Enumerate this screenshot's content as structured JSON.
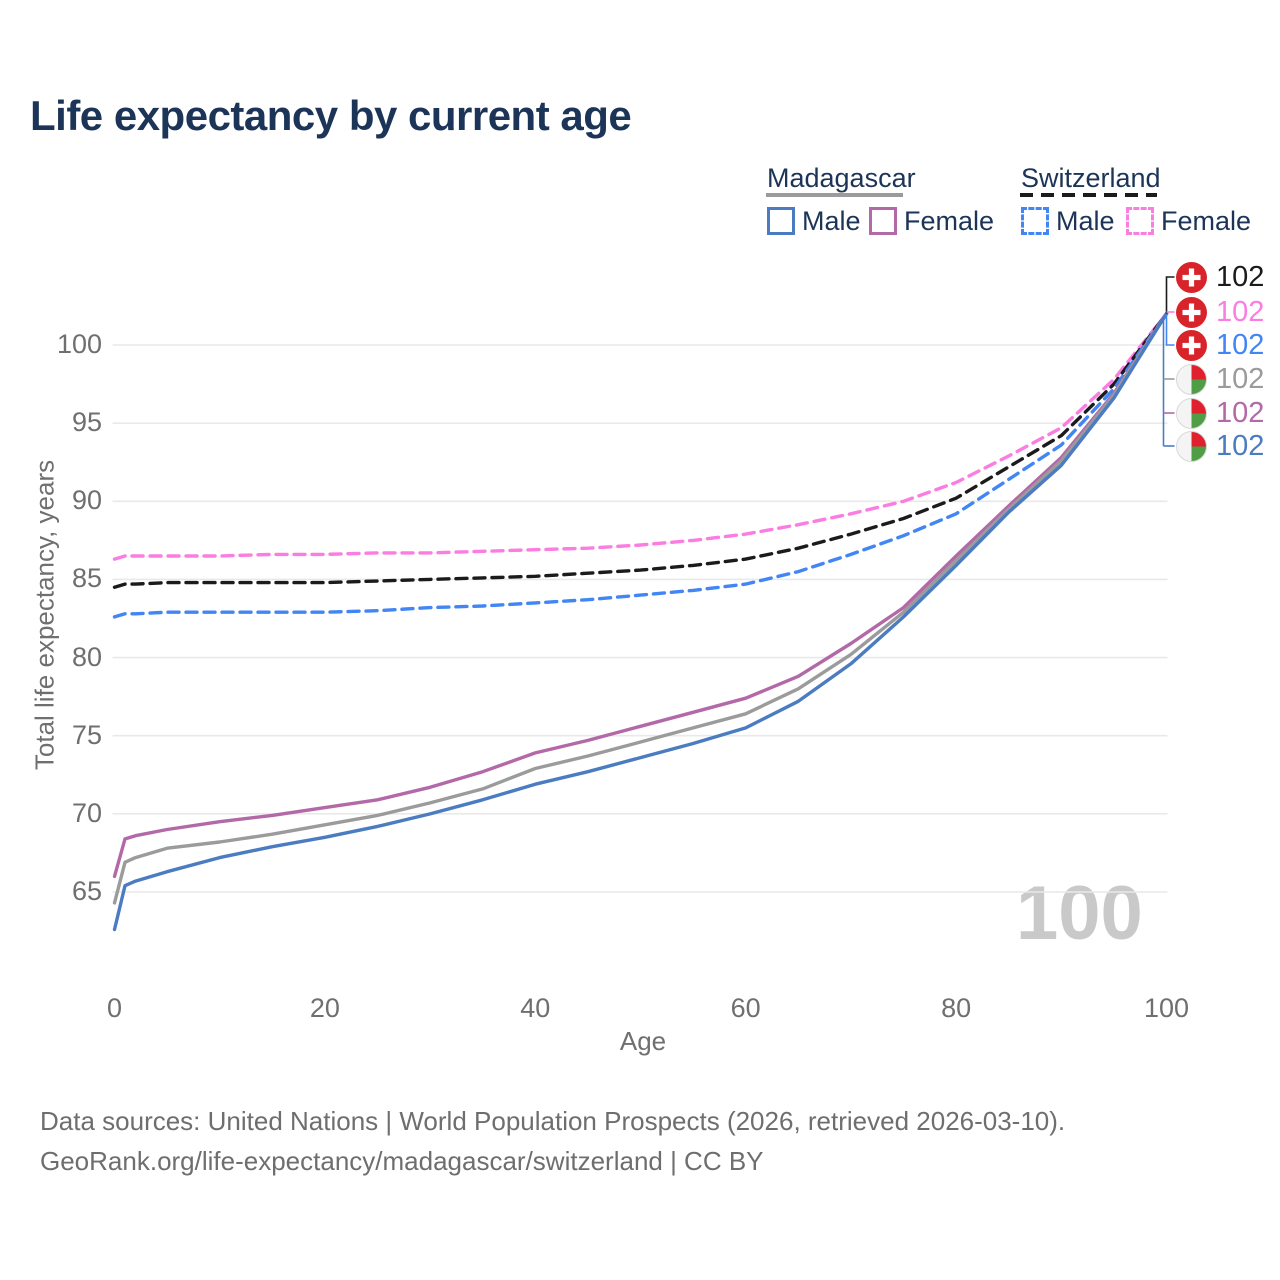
{
  "title": "Life expectancy by current age",
  "legend": {
    "groups": [
      {
        "country": "Madagascar",
        "line_style": "solid",
        "line_sample_color": "#9b9b9b",
        "items": [
          {
            "label": "Male",
            "color": "#4b7cc1",
            "dashed": false
          },
          {
            "label": "Female",
            "color": "#b369a8",
            "dashed": false
          }
        ]
      },
      {
        "country": "Switzerland",
        "line_style": "dashed",
        "line_sample_color": "#1b1b1b",
        "items": [
          {
            "label": "Male",
            "color": "#4186f4",
            "dashed": true
          },
          {
            "label": "Female",
            "color": "#fb7de1",
            "dashed": true
          }
        ]
      }
    ]
  },
  "chart_data": {
    "type": "line",
    "title": "Life expectancy by current age",
    "xlabel": "Age",
    "ylabel": "Total life expectancy, years",
    "xlim": [
      0,
      100
    ],
    "ylim": [
      60.5,
      104.5
    ],
    "x_ticks": [
      0,
      20,
      40,
      60,
      80,
      100
    ],
    "y_ticks": [
      65,
      70,
      75,
      80,
      85,
      90,
      95,
      100
    ],
    "grid": "horizontal",
    "legend_position": "top-right",
    "x": [
      0,
      1,
      2,
      5,
      10,
      15,
      20,
      25,
      30,
      35,
      40,
      45,
      50,
      55,
      60,
      65,
      70,
      75,
      80,
      85,
      90,
      95,
      100
    ],
    "series": [
      {
        "name": "Switzerland Female",
        "country": "Switzerland",
        "sex": "Female",
        "color": "#fb7de1",
        "dashed": true,
        "values": [
          86.3,
          86.5,
          86.5,
          86.5,
          86.5,
          86.6,
          86.6,
          86.7,
          86.7,
          86.8,
          86.9,
          87.0,
          87.2,
          87.5,
          87.9,
          88.5,
          89.2,
          90.0,
          91.2,
          92.9,
          94.7,
          97.8,
          102
        ]
      },
      {
        "name": "Switzerland Total",
        "country": "Switzerland",
        "sex": "Both",
        "color": "#1b1b1b",
        "dashed": true,
        "values": [
          84.5,
          84.7,
          84.7,
          84.8,
          84.8,
          84.8,
          84.8,
          84.9,
          85.0,
          85.1,
          85.2,
          85.4,
          85.6,
          85.9,
          86.3,
          87.0,
          87.9,
          88.9,
          90.2,
          92.2,
          94.2,
          97.5,
          102
        ]
      },
      {
        "name": "Switzerland Male",
        "country": "Switzerland",
        "sex": "Male",
        "color": "#4186f4",
        "dashed": true,
        "values": [
          82.6,
          82.8,
          82.8,
          82.9,
          82.9,
          82.9,
          82.9,
          83.0,
          83.2,
          83.3,
          83.5,
          83.7,
          84.0,
          84.3,
          84.7,
          85.5,
          86.6,
          87.8,
          89.2,
          91.4,
          93.6,
          97.2,
          102
        ]
      },
      {
        "name": "Madagascar Female",
        "country": "Madagascar",
        "sex": "Female",
        "color": "#b369a8",
        "dashed": false,
        "values": [
          66.0,
          68.4,
          68.6,
          69.0,
          69.5,
          69.9,
          70.4,
          70.9,
          71.7,
          72.7,
          73.9,
          74.7,
          75.6,
          76.5,
          77.4,
          78.8,
          80.9,
          83.2,
          86.5,
          89.7,
          92.8,
          96.9,
          102
        ]
      },
      {
        "name": "Madagascar Total",
        "country": "Madagascar",
        "sex": "Both",
        "color": "#9b9b9b",
        "dashed": false,
        "values": [
          64.3,
          66.9,
          67.2,
          67.8,
          68.2,
          68.7,
          69.3,
          69.9,
          70.7,
          71.6,
          72.9,
          73.7,
          74.6,
          75.5,
          76.4,
          78.0,
          80.2,
          82.9,
          86.2,
          89.5,
          92.6,
          96.8,
          102
        ]
      },
      {
        "name": "Madagascar Male",
        "country": "Madagascar",
        "sex": "Male",
        "color": "#4b7cc1",
        "dashed": false,
        "values": [
          62.6,
          65.4,
          65.7,
          66.3,
          67.2,
          67.9,
          68.5,
          69.2,
          70.0,
          70.9,
          71.9,
          72.7,
          73.6,
          74.5,
          75.5,
          77.2,
          79.6,
          82.6,
          85.9,
          89.3,
          92.3,
          96.6,
          102
        ]
      }
    ],
    "end_value_labels": [
      {
        "flag": "switzerland",
        "series": "Switzerland Total",
        "value": "102",
        "color": "#1b1b1b"
      },
      {
        "flag": "switzerland",
        "series": "Switzerland Female",
        "value": "102",
        "color": "#fb7de1"
      },
      {
        "flag": "switzerland",
        "series": "Switzerland Male",
        "value": "102",
        "color": "#4186f4"
      },
      {
        "flag": "madagascar",
        "series": "Madagascar Total",
        "value": "102",
        "color": "#9b9b9b"
      },
      {
        "flag": "madagascar",
        "series": "Madagascar Female",
        "value": "102",
        "color": "#b369a8"
      },
      {
        "flag": "madagascar",
        "series": "Madagascar Male",
        "value": "102",
        "color": "#4b7cc1"
      }
    ]
  },
  "watermark": "100",
  "colors": {
    "title": "#1c3457",
    "axis_text": "#6f6f6f",
    "gridline": "#e9e9e9",
    "watermark": "#c9c9c9",
    "swiss_flag_red": "#d8232a",
    "madagascar_flag_red": "#e01f2f",
    "madagascar_flag_green": "#4f9e45"
  },
  "footer": {
    "line1": "Data sources: United Nations | World Population Prospects (2026, retrieved 2026-03-10).",
    "line2": "GeoRank.org/life-expectancy/madagascar/switzerland | CC BY"
  }
}
